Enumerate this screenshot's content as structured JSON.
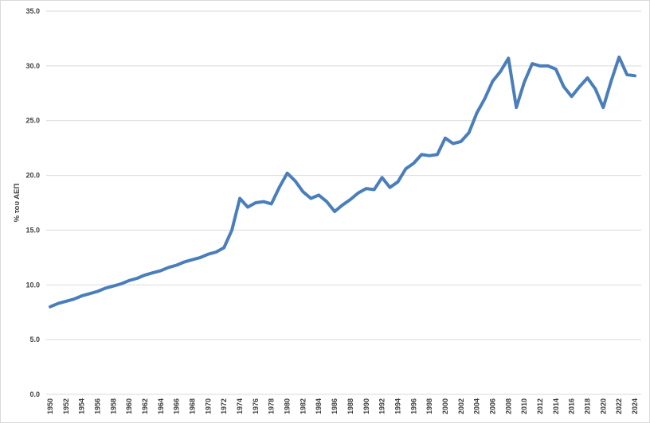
{
  "chart_data": {
    "type": "line",
    "title": "",
    "xlabel": "",
    "ylabel": "% του ΑΕΠ",
    "ylim": [
      0,
      35
    ],
    "yticks": [
      "0.0",
      "5.0",
      "10.0",
      "15.0",
      "20.0",
      "25.0",
      "30.0",
      "35.0"
    ],
    "xlim": [
      1950,
      2024
    ],
    "xtick_step": 2,
    "grid": "horizontal",
    "line_color": "#4A7EBB",
    "x": [
      1950,
      1951,
      1952,
      1953,
      1954,
      1955,
      1956,
      1957,
      1958,
      1959,
      1960,
      1961,
      1962,
      1963,
      1964,
      1965,
      1966,
      1967,
      1968,
      1969,
      1970,
      1971,
      1972,
      1973,
      1974,
      1975,
      1976,
      1977,
      1978,
      1979,
      1980,
      1981,
      1982,
      1983,
      1984,
      1985,
      1986,
      1987,
      1988,
      1989,
      1990,
      1991,
      1992,
      1993,
      1994,
      1995,
      1996,
      1997,
      1998,
      1999,
      2000,
      2001,
      2002,
      2003,
      2004,
      2005,
      2006,
      2007,
      2008,
      2009,
      2010,
      2011,
      2012,
      2013,
      2014,
      2015,
      2016,
      2017,
      2018,
      2019,
      2020,
      2021,
      2022,
      2023,
      2024
    ],
    "values": [
      8.0,
      8.3,
      8.5,
      8.7,
      9.0,
      9.2,
      9.4,
      9.7,
      9.9,
      10.1,
      10.4,
      10.6,
      10.9,
      11.1,
      11.3,
      11.6,
      11.8,
      12.1,
      12.3,
      12.5,
      12.8,
      13.0,
      13.4,
      15.0,
      17.9,
      17.1,
      17.5,
      17.6,
      17.4,
      18.9,
      20.2,
      19.5,
      18.5,
      17.9,
      18.2,
      17.6,
      16.7,
      17.3,
      17.8,
      18.4,
      18.8,
      18.7,
      19.8,
      18.9,
      19.4,
      20.6,
      21.1,
      21.9,
      21.8,
      21.9,
      23.4,
      22.9,
      23.1,
      23.9,
      25.7,
      27.0,
      28.6,
      29.5,
      30.7,
      26.2,
      28.5,
      30.2,
      30.0,
      30.0,
      29.7,
      28.1,
      27.2,
      28.1,
      28.9,
      27.9,
      26.2,
      28.6,
      30.8,
      29.2,
      29.1
    ]
  }
}
